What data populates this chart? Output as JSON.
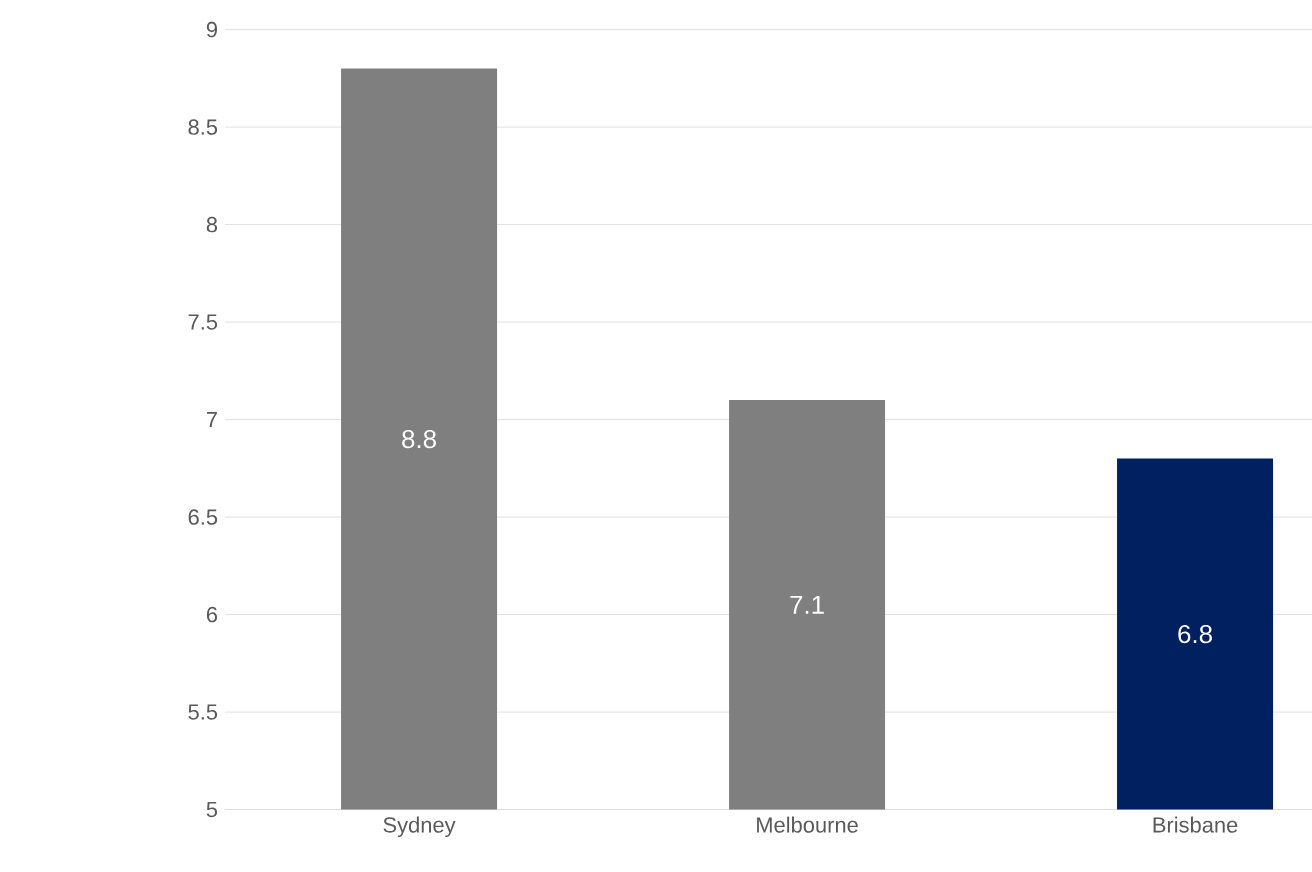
{
  "chart_data": {
    "type": "bar",
    "categories": [
      "Sydney",
      "Melbourne",
      "Brisbane"
    ],
    "values": [
      8.8,
      7.1,
      6.8
    ],
    "colors": [
      "#7f7f7f",
      "#7f7f7f",
      "#002060"
    ],
    "ylim": [
      5,
      9
    ],
    "yticks": [
      5,
      5.5,
      6,
      6.5,
      7,
      7.5,
      8,
      8.5,
      9
    ],
    "grid": "y",
    "data_labels": true
  }
}
